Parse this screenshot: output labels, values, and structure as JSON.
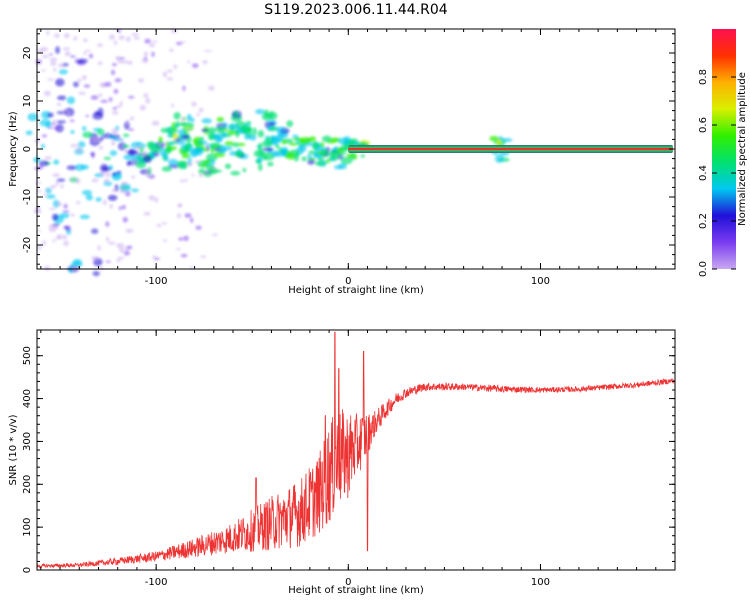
{
  "title": "S119.2023.006.11.44.R04",
  "colors": {
    "snr_line": "#ee3333",
    "carrier_band": "#2e7d74",
    "carrier_core": "#e8322b",
    "colorbar_stops": [
      "#c8a8f0",
      "#7a3cf0",
      "#2010d8",
      "#00c8f0",
      "#00e070",
      "#30f000",
      "#d8f000",
      "#ffb000",
      "#ff3000",
      "#ff1050"
    ]
  },
  "chart_data": [
    {
      "type": "heatmap",
      "name": "spectrogram",
      "xlabel": "Height of straight line (km)",
      "ylabel": "Frequency (Hz)",
      "xlim": [
        -162,
        170
      ],
      "ylim": [
        -25,
        25
      ],
      "x_ticks": [
        -100,
        0,
        100
      ],
      "y_ticks": [
        -20,
        -10,
        0,
        10,
        20
      ],
      "colorbar": {
        "label": "Normalized spectral amplitude",
        "range": [
          0,
          1
        ],
        "ticks": [
          "0.0",
          "0.2",
          "0.4",
          "0.6",
          "0.8"
        ]
      },
      "carrier": {
        "frequency_hz": 0,
        "x_start_km": 0,
        "x_end_km": 170,
        "amplitude": 0.85
      },
      "blobs": [
        {
          "x": -160,
          "y": 3,
          "a": 0.35
        },
        {
          "x": -155,
          "y": -4,
          "a": 0.38
        },
        {
          "x": -150,
          "y": 10,
          "a": 0.32
        },
        {
          "x": -148,
          "y": -12,
          "a": 0.35
        },
        {
          "x": -145,
          "y": 16,
          "a": 0.32
        },
        {
          "x": -140,
          "y": -1,
          "a": 0.4
        },
        {
          "x": -138,
          "y": -20,
          "a": 0.35
        },
        {
          "x": -135,
          "y": 4,
          "a": 0.38
        },
        {
          "x": -130,
          "y": -8,
          "a": 0.35
        },
        {
          "x": -128,
          "y": -2,
          "a": 0.38
        },
        {
          "x": -125,
          "y": -3,
          "a": 0.36
        },
        {
          "x": -120,
          "y": 1,
          "a": 0.38
        },
        {
          "x": -115,
          "y": -4,
          "a": 0.4
        },
        {
          "x": -110,
          "y": -1,
          "a": 0.42
        },
        {
          "x": -105,
          "y": -3,
          "a": 0.45
        },
        {
          "x": -100,
          "y": 0,
          "a": 0.45
        },
        {
          "x": -95,
          "y": 2,
          "a": 0.55
        },
        {
          "x": -90,
          "y": -2,
          "a": 0.48
        },
        {
          "x": -88,
          "y": 3,
          "a": 0.62
        },
        {
          "x": -85,
          "y": 5,
          "a": 0.55
        },
        {
          "x": -82,
          "y": 1,
          "a": 0.5
        },
        {
          "x": -80,
          "y": -1,
          "a": 0.58
        },
        {
          "x": -75,
          "y": 2,
          "a": 0.6
        },
        {
          "x": -72,
          "y": -4,
          "a": 0.55
        },
        {
          "x": -70,
          "y": 4,
          "a": 0.5
        },
        {
          "x": -65,
          "y": 1,
          "a": 0.52
        },
        {
          "x": -60,
          "y": 3,
          "a": 0.55
        },
        {
          "x": -58,
          "y": -3,
          "a": 0.45
        },
        {
          "x": -55,
          "y": 5,
          "a": 0.5
        },
        {
          "x": -50,
          "y": 2,
          "a": 0.45
        },
        {
          "x": -45,
          "y": -2,
          "a": 0.45
        },
        {
          "x": -42,
          "y": 6,
          "a": 0.42
        },
        {
          "x": -40,
          "y": 0,
          "a": 0.45
        },
        {
          "x": -35,
          "y": 3,
          "a": 0.45
        },
        {
          "x": -30,
          "y": 1,
          "a": 0.5
        },
        {
          "x": -25,
          "y": 0,
          "a": 0.55
        },
        {
          "x": -20,
          "y": 0,
          "a": 0.55
        },
        {
          "x": -15,
          "y": -1,
          "a": 0.5
        },
        {
          "x": -10,
          "y": 0,
          "a": 0.55
        },
        {
          "x": -5,
          "y": -2,
          "a": 0.45
        },
        {
          "x": 0,
          "y": 0,
          "a": 0.55
        },
        {
          "x": 5,
          "y": 0,
          "a": 0.6
        },
        {
          "x": 78,
          "y": 0,
          "a": 0.6
        }
      ]
    },
    {
      "type": "line",
      "name": "snr",
      "xlabel": "Height of straight line (km)",
      "ylabel": "SNR (10 * v/v)",
      "xlim": [
        -162,
        170
      ],
      "ylim": [
        0,
        560
      ],
      "x_ticks": [
        -100,
        0,
        100
      ],
      "y_ticks": [
        0,
        100,
        200,
        300,
        400,
        500
      ],
      "envelope": {
        "x": [
          -162,
          -140,
          -120,
          -100,
          -80,
          -60,
          -40,
          -25,
          -15,
          -10,
          -5,
          0,
          5,
          8,
          10,
          12,
          15,
          20,
          25,
          30,
          40,
          60,
          80,
          100,
          120,
          150,
          170
        ],
        "mean": [
          8,
          10,
          18,
          28,
          45,
          65,
          90,
          110,
          150,
          190,
          220,
          240,
          270,
          290,
          300,
          320,
          340,
          370,
          395,
          410,
          425,
          425,
          420,
          418,
          420,
          430,
          440
        ],
        "spread": [
          5,
          6,
          10,
          15,
          28,
          45,
          80,
          100,
          120,
          150,
          150,
          130,
          90,
          80,
          70,
          45,
          35,
          25,
          18,
          15,
          12,
          10,
          10,
          8,
          8,
          8,
          8
        ]
      },
      "spikes": [
        {
          "x": -7,
          "y": 555
        },
        {
          "x": -5,
          "y": 470
        },
        {
          "x": 8,
          "y": 510
        },
        {
          "x": 10,
          "y": 45
        },
        {
          "x": -12,
          "y": 360
        },
        {
          "x": -48,
          "y": 215
        }
      ]
    }
  ]
}
